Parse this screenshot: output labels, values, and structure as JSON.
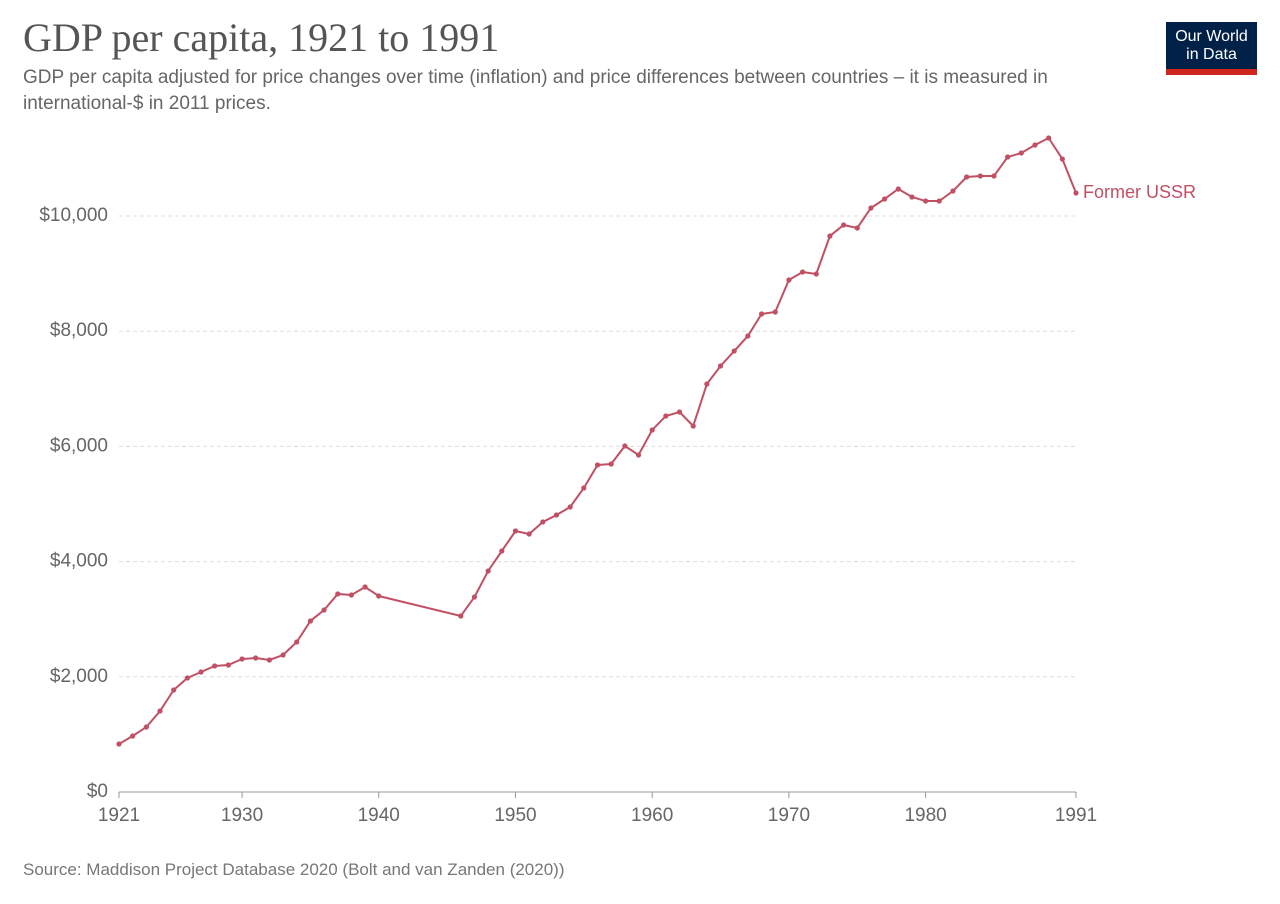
{
  "chart_data": {
    "type": "line",
    "title": "GDP per capita, 1921 to 1991",
    "subtitle": "GDP per capita adjusted for price changes over time (inflation) and price differences between countries – it is measured in international-$ in 2011 prices.",
    "source": "Source: Maddison Project Database 2020 (Bolt and van Zanden (2020))",
    "x": [
      1921,
      1922,
      1923,
      1924,
      1925,
      1926,
      1927,
      1928,
      1929,
      1930,
      1931,
      1932,
      1933,
      1934,
      1935,
      1936,
      1937,
      1938,
      1939,
      1940,
      1946,
      1947,
      1948,
      1949,
      1950,
      1951,
      1952,
      1953,
      1954,
      1955,
      1956,
      1957,
      1958,
      1959,
      1960,
      1961,
      1962,
      1963,
      1964,
      1965,
      1966,
      1967,
      1968,
      1969,
      1970,
      1971,
      1972,
      1973,
      1974,
      1975,
      1976,
      1977,
      1978,
      1979,
      1980,
      1981,
      1982,
      1983,
      1984,
      1985,
      1986,
      1987,
      1988,
      1989,
      1990,
      1991
    ],
    "series": [
      {
        "name": "Former USSR",
        "color": "#c15065",
        "values": [
          833,
          972,
          1128,
          1406,
          1771,
          1979,
          2083,
          2188,
          2205,
          2309,
          2326,
          2292,
          2378,
          2604,
          2969,
          3160,
          3438,
          3420,
          3559,
          3403,
          3056,
          3385,
          3837,
          4184,
          4531,
          4479,
          4688,
          4809,
          4948,
          5278,
          5677,
          5694,
          6007,
          5851,
          6285,
          6528,
          6597,
          6354,
          7083,
          7396,
          7656,
          7917,
          8299,
          8333,
          8889,
          9028,
          8993,
          9653,
          9844,
          9792,
          10139,
          10295,
          10469,
          10330,
          10260,
          10260,
          10434,
          10677,
          10694,
          10694,
          11024,
          11094,
          11233,
          11354,
          10990,
          10399
        ]
      }
    ],
    "xlim": [
      1921,
      1991
    ],
    "xticks": [
      1921,
      1930,
      1940,
      1950,
      1960,
      1970,
      1980,
      1991
    ],
    "ylim": [
      0,
      11400
    ],
    "yticks": [
      {
        "value": 0,
        "label": "$0"
      },
      {
        "value": 2000,
        "label": "$2,000"
      },
      {
        "value": 4000,
        "label": "$4,000"
      },
      {
        "value": 6000,
        "label": "$6,000"
      },
      {
        "value": 8000,
        "label": "$8,000"
      },
      {
        "value": 10000,
        "label": "$10,000"
      }
    ],
    "grid": true
  },
  "logo": {
    "line1": "Our World",
    "line2": "in Data"
  }
}
